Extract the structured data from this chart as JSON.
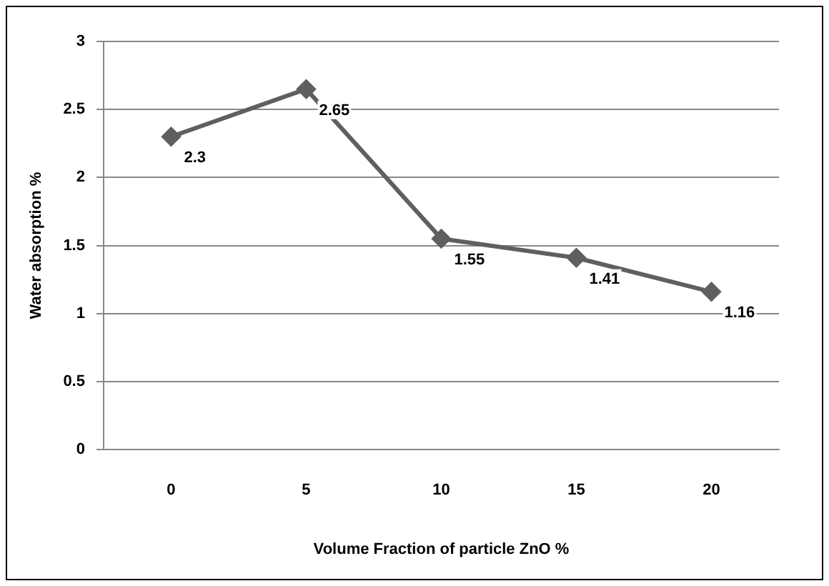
{
  "chart_data": {
    "type": "line",
    "xlabel": "Volume Fraction of particle ZnO %",
    "ylabel": "Water absorption %",
    "categories": [
      "0",
      "5",
      "10",
      "15",
      "20"
    ],
    "series": [
      {
        "color": "#5f5f5f",
        "values": [
          2.3,
          2.65,
          1.55,
          1.41,
          1.16
        ]
      }
    ],
    "ylim": [
      0,
      3
    ],
    "yticks": [
      0,
      0.5,
      1,
      1.5,
      2,
      2.5,
      3
    ],
    "grid": "y",
    "legend": false,
    "marker": "diamond",
    "line_style": "solid",
    "data_labels": true
  }
}
